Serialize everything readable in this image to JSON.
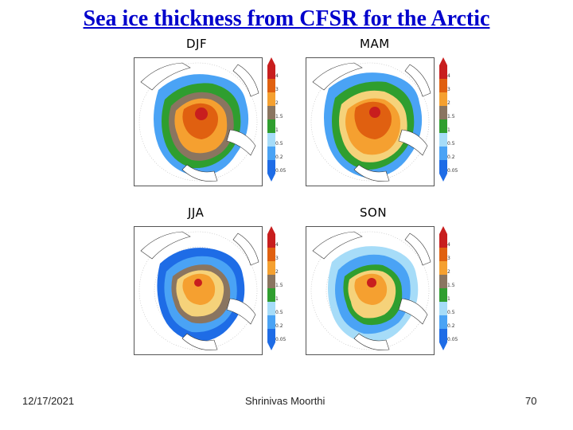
{
  "slide": {
    "title": "Sea ice thickness from CFSR for the Arctic",
    "footer": {
      "date": "12/17/2021",
      "author": "Shrinivas Moorthi",
      "page_number": "70"
    }
  },
  "colors": {
    "title": "#0000cc",
    "ice_levels": [
      "#1e6ce6",
      "#4aa3f5",
      "#a6dcf8",
      "#2f9e2f",
      "#8a7560",
      "#f5d27a",
      "#f5a030",
      "#e06010",
      "#c81e1e"
    ],
    "land": "#ffffff",
    "ocean": "#ffffff"
  },
  "panels": [
    {
      "season": "DJF",
      "colorbar_ticks": [
        "4",
        "3",
        "2",
        "1.5",
        "1",
        "0.5",
        "0.2",
        "0.05"
      ]
    },
    {
      "season": "MAM",
      "colorbar_ticks": [
        "4",
        "3",
        "2",
        "1.5",
        "1",
        "0.5",
        "0.2",
        "0.05"
      ]
    },
    {
      "season": "JJA",
      "colorbar_ticks": [
        "4",
        "3",
        "2",
        "1.5",
        "1",
        "0.5",
        "0.2",
        "0.05"
      ]
    },
    {
      "season": "SON",
      "colorbar_ticks": [
        "4",
        "3",
        "2",
        "1.5",
        "1",
        "0.5",
        "0.2",
        "0.05"
      ]
    }
  ]
}
